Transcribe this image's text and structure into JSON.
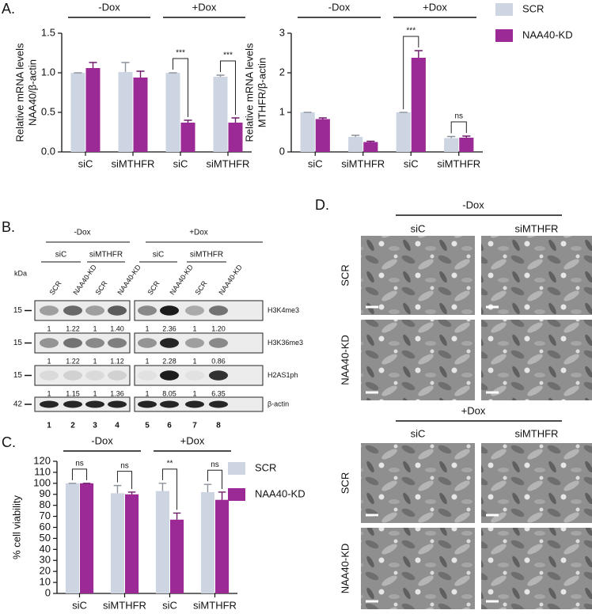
{
  "panels": {
    "A": "A.",
    "B": "B.",
    "C": "C.",
    "D": "D."
  },
  "chart_data": [
    {
      "type": "bar",
      "y_label": [
        "Relative mRNA levels",
        "NAA40/β-actin"
      ],
      "categories": [
        "siC",
        "siMTHFR",
        "siC",
        "siMTHFR"
      ],
      "groups": [
        "-Dox",
        "+Dox"
      ],
      "series": [
        {
          "color": "#cdd5e3",
          "values": [
            1,
            1.01,
            1,
            0.95
          ],
          "errors": [
            0,
            0.12,
            0,
            0.02
          ]
        },
        {
          "color": "#9c2a96",
          "values": [
            1.06,
            0.94,
            0.37,
            0.37
          ],
          "errors": [
            0.07,
            0.08,
            0.03,
            0.06
          ]
        }
      ],
      "annotations": [
        null,
        null,
        "***",
        "***"
      ],
      "ylim": [
        0,
        1.5
      ],
      "yticks": [
        {
          "value": 0,
          "label": "0.0"
        },
        0.5,
        {
          "value": 1,
          "label": "1.0"
        },
        1.5
      ]
    },
    {
      "type": "bar",
      "y_label": [
        "Relative mRNA levels",
        "MTHFR/β-actin"
      ],
      "categories": [
        "siC",
        "siMTHFR",
        "siC",
        "siMTHFR"
      ],
      "groups": [
        "-Dox",
        "+Dox"
      ],
      "series": [
        {
          "name": "SCR",
          "color": "#cdd5e3",
          "values": [
            1,
            0.38,
            1,
            0.35
          ],
          "errors": [
            0,
            0.04,
            0,
            0.04
          ]
        },
        {
          "name": "NAA40-KD",
          "color": "#9c2a96",
          "values": [
            0.83,
            0.25,
            2.38,
            0.36
          ],
          "errors": [
            0.03,
            0.02,
            0.18,
            0.04
          ]
        }
      ],
      "annotations": [
        null,
        null,
        "***",
        "ns"
      ],
      "legend": "outside-right",
      "ylim": [
        0,
        3
      ],
      "yticks": [
        0,
        1,
        2,
        3
      ]
    },
    {
      "type": "bar",
      "y_label": "% cell viability",
      "categories": [
        "siC",
        "siMTHFR",
        "siC",
        "siMTHFR"
      ],
      "groups": [
        "-Dox",
        "+Dox"
      ],
      "series": [
        {
          "name": "SCR",
          "color": "#cdd5e3",
          "values": [
            100,
            91,
            93,
            92
          ],
          "errors": [
            0,
            7,
            7,
            7
          ]
        },
        {
          "name": "NAA40-KD",
          "color": "#9c2a96",
          "values": [
            100,
            90,
            67,
            85
          ],
          "errors": [
            0,
            2,
            6,
            7
          ]
        }
      ],
      "annotations": [
        "ns",
        "ns",
        "**",
        "ns"
      ],
      "legend": "outside-right",
      "ylim": [
        0,
        120
      ],
      "yticks": [
        0,
        10,
        20,
        30,
        40,
        50,
        60,
        70,
        80,
        90,
        100,
        110,
        120
      ]
    }
  ],
  "blot": {
    "treatments": [
      "-Dox",
      "+Dox"
    ],
    "sirnas": [
      "siC",
      "siMTHFR",
      "siC",
      "siMTHFR"
    ],
    "lanes": [
      "SCR",
      "NAA40-KD",
      "SCR",
      "NAA40-KD",
      "SCR",
      "NAA40-KD",
      "SCR",
      "NAA40-KD"
    ],
    "kda_label": "kDa",
    "markers": [
      "15",
      "15",
      "15",
      "42"
    ],
    "proteins": [
      "H3K4me3",
      "H3K36me3",
      "H2AS1ph",
      "β-actin"
    ],
    "quantification": [
      [
        "1",
        "1.22",
        "1",
        "1.40",
        "1",
        "2.36",
        "1",
        "1.20"
      ],
      [
        "1",
        "1.22",
        "1",
        "1.12",
        "1",
        "2.28",
        "1",
        "0.86"
      ],
      [
        "1",
        "1.15",
        "1",
        "1.36",
        "1",
        "8.05",
        "1",
        "6.35"
      ]
    ],
    "lane_numbers": [
      "1",
      "2",
      "3",
      "4",
      "5",
      "6",
      "7",
      "8"
    ]
  },
  "micrographs": {
    "treatments": [
      "-Dox",
      "+Dox"
    ],
    "sirnas": [
      "siC",
      "siMTHFR",
      "siC",
      "siMTHFR"
    ],
    "rows": [
      "SCR",
      "NAA40-KD",
      "SCR",
      "NAA40-KD"
    ]
  }
}
